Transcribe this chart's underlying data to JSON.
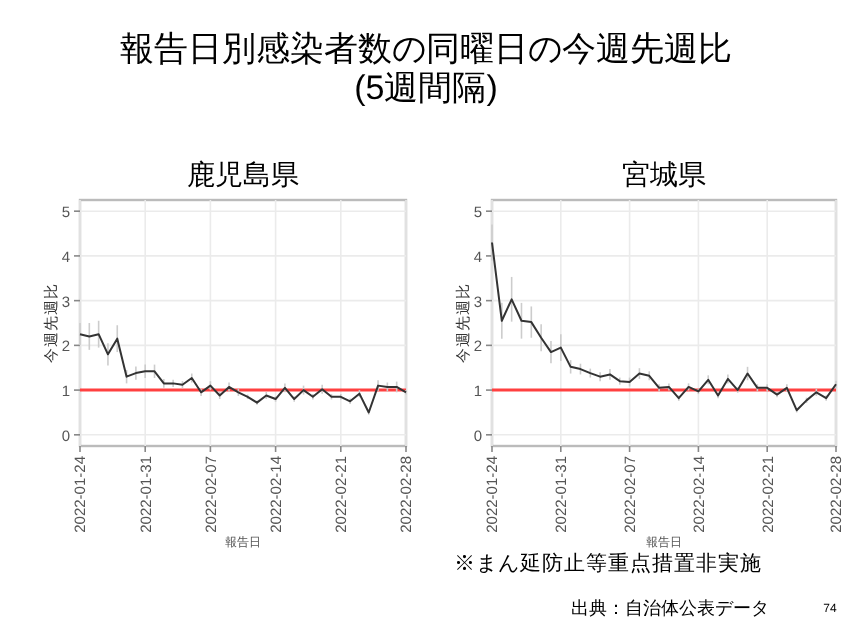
{
  "chart_data": [
    {
      "type": "line",
      "title": "鹿児島県",
      "xlabel": "報告日",
      "ylabel": "今週先週比",
      "annotations": [
        "報告日別感染者数の同曜日の今週先週比\n(5週間隔)"
      ],
      "x": [
        "2022-01-24",
        "2022-01-25",
        "2022-01-26",
        "2022-01-27",
        "2022-01-28",
        "2022-01-29",
        "2022-01-30",
        "2022-01-31",
        "2022-02-01",
        "2022-02-02",
        "2022-02-03",
        "2022-02-04",
        "2022-02-05",
        "2022-02-06",
        "2022-02-07",
        "2022-02-08",
        "2022-02-09",
        "2022-02-10",
        "2022-02-11",
        "2022-02-12",
        "2022-02-13",
        "2022-02-14",
        "2022-02-15",
        "2022-02-16",
        "2022-02-17",
        "2022-02-18",
        "2022-02-19",
        "2022-02-20",
        "2022-02-21",
        "2022-02-22",
        "2022-02-23",
        "2022-02-24",
        "2022-02-25",
        "2022-02-26",
        "2022-02-27",
        "2022-02-28"
      ],
      "series": [
        {
          "color": "#333333",
          "values": [
            2.25,
            2.2,
            2.25,
            1.8,
            2.15,
            1.3,
            1.38,
            1.42,
            1.42,
            1.15,
            1.15,
            1.12,
            1.27,
            0.95,
            1.1,
            0.88,
            1.07,
            0.95,
            0.85,
            0.72,
            0.88,
            0.8,
            1.05,
            0.8,
            1.0,
            0.85,
            1.02,
            0.85,
            0.85,
            0.75,
            0.92,
            0.5,
            1.1,
            1.07,
            1.07,
            0.95
          ],
          "errors": [
            0.25,
            0.3,
            0.3,
            0.25,
            0.3,
            0.15,
            0.15,
            0.15,
            0.15,
            0.1,
            0.08,
            0.08,
            0.1,
            0.08,
            0.1,
            0.08,
            0.1,
            0.08,
            0.05,
            0.05,
            0.08,
            0.06,
            0.1,
            0.06,
            0.1,
            0.06,
            0.1,
            0.06,
            0.06,
            0.06,
            0.08,
            0.05,
            0.12,
            0.1,
            0.12,
            0.05
          ]
        }
      ],
      "xlim": [
        "2022-01-24",
        "2022-02-28"
      ],
      "xticks": [
        "2022-01-24",
        "2022-01-31",
        "2022-02-07",
        "2022-02-14",
        "2022-02-21",
        "2022-02-28"
      ],
      "ylim": [
        -0.25,
        5.25
      ],
      "yticks": [
        0,
        1,
        2,
        3,
        4,
        5
      ],
      "grid": true,
      "ref_lines": [
        {
          "axis": "y",
          "value": 1,
          "color": "#ff4040"
        }
      ]
    },
    {
      "type": "line",
      "title": "宮城県",
      "xlabel": "報告日",
      "ylabel": "今週先週比",
      "annotations": [
        "※まん延防止等重点措置非実施",
        "出典：自治体公表データ",
        "74"
      ],
      "x": [
        "2022-01-24",
        "2022-01-25",
        "2022-01-26",
        "2022-01-27",
        "2022-01-28",
        "2022-01-29",
        "2022-01-30",
        "2022-01-31",
        "2022-02-01",
        "2022-02-02",
        "2022-02-03",
        "2022-02-04",
        "2022-02-05",
        "2022-02-06",
        "2022-02-07",
        "2022-02-08",
        "2022-02-09",
        "2022-02-10",
        "2022-02-11",
        "2022-02-12",
        "2022-02-13",
        "2022-02-14",
        "2022-02-15",
        "2022-02-16",
        "2022-02-17",
        "2022-02-18",
        "2022-02-19",
        "2022-02-20",
        "2022-02-21",
        "2022-02-22",
        "2022-02-23",
        "2022-02-24",
        "2022-02-25",
        "2022-02-26",
        "2022-02-27",
        "2022-02-28"
      ],
      "series": [
        {
          "color": "#333333",
          "values": [
            4.3,
            2.55,
            3.03,
            2.55,
            2.52,
            2.17,
            1.85,
            1.95,
            1.52,
            1.47,
            1.38,
            1.3,
            1.35,
            1.2,
            1.18,
            1.37,
            1.32,
            1.05,
            1.07,
            0.82,
            1.07,
            0.97,
            1.23,
            0.88,
            1.25,
            1.0,
            1.37,
            1.05,
            1.05,
            0.9,
            1.05,
            0.55,
            0.77,
            0.95,
            0.82,
            1.13
          ],
          "errors": [
            0.4,
            0.4,
            0.5,
            0.4,
            0.35,
            0.3,
            0.25,
            0.3,
            0.15,
            0.12,
            0.1,
            0.1,
            0.12,
            0.08,
            0.1,
            0.12,
            0.1,
            0.08,
            0.08,
            0.06,
            0.08,
            0.06,
            0.1,
            0.06,
            0.1,
            0.06,
            0.15,
            0.08,
            0.08,
            0.06,
            0.08,
            0.05,
            0.06,
            0.08,
            0.06,
            0.08
          ]
        }
      ],
      "xlim": [
        "2022-01-24",
        "2022-02-28"
      ],
      "xticks": [
        "2022-01-24",
        "2022-01-31",
        "2022-02-07",
        "2022-02-14",
        "2022-02-21",
        "2022-02-28"
      ],
      "ylim": [
        -0.25,
        5.25
      ],
      "yticks": [
        0,
        1,
        2,
        3,
        4,
        5
      ],
      "grid": true,
      "ref_lines": [
        {
          "axis": "y",
          "value": 1,
          "color": "#ff4040"
        }
      ]
    }
  ]
}
